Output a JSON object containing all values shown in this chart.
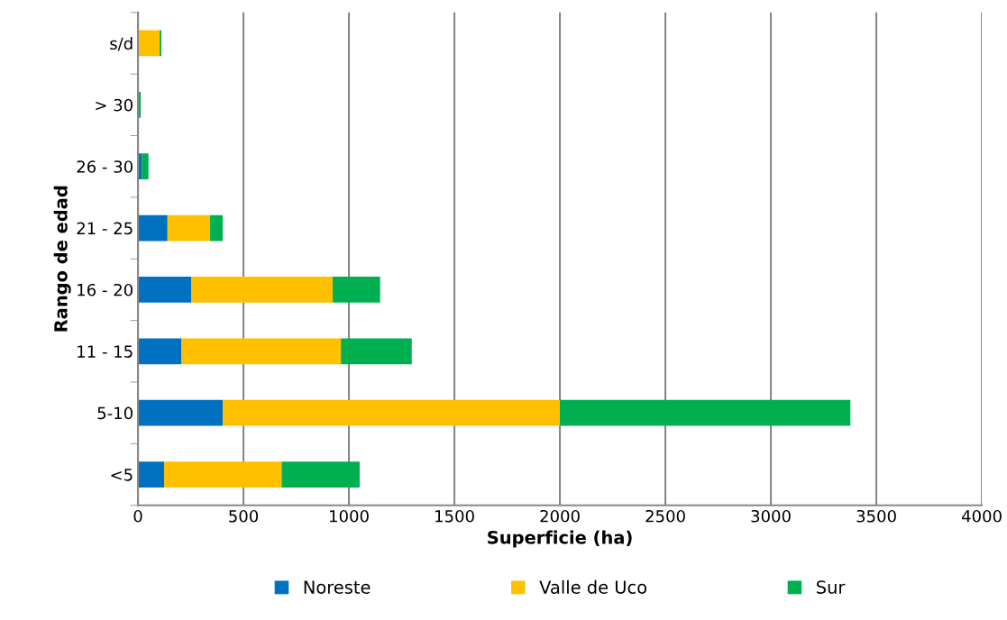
{
  "chart_data": {
    "type": "bar",
    "orientation": "horizontal",
    "stacked": true,
    "xlabel": "Superficie (ha)",
    "ylabel": "Rango de edad",
    "categories": [
      "s/d",
      "> 30",
      "26 - 30",
      "21 - 25",
      "16 - 20",
      "11 - 15",
      "5-10",
      "<5"
    ],
    "series": [
      {
        "name": "Noreste",
        "color": "#0070c0",
        "values": [
          0,
          0,
          18,
          140,
          252,
          205,
          402,
          124
        ]
      },
      {
        "name": "Valle de Uco",
        "color": "#ffc000",
        "values": [
          103,
          0,
          0,
          202,
          671,
          757,
          1598,
          557
        ]
      },
      {
        "name": "Sur",
        "color": "#00b050",
        "values": [
          8,
          13,
          32,
          60,
          225,
          336,
          1377,
          370
        ]
      }
    ],
    "xlim": [
      0,
      4000
    ],
    "xticks": [
      0,
      500,
      1000,
      1500,
      2000,
      2500,
      3000,
      3500,
      4000
    ],
    "grid": "x",
    "legend": "bottom"
  }
}
